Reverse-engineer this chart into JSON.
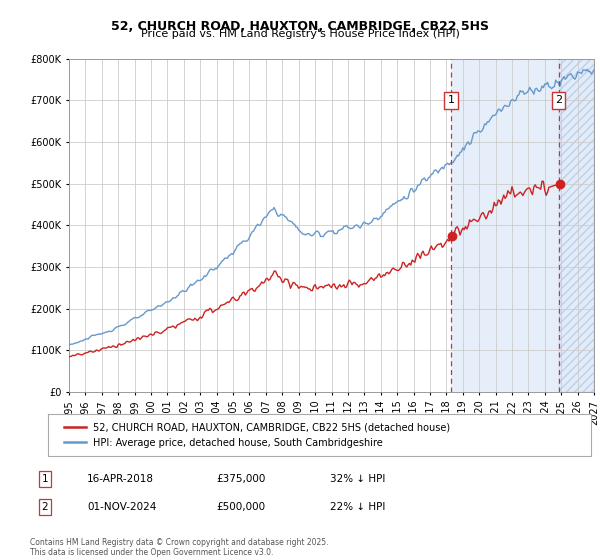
{
  "title1": "52, CHURCH ROAD, HAUXTON, CAMBRIDGE, CB22 5HS",
  "title2": "Price paid vs. HM Land Registry's House Price Index (HPI)",
  "ylim": [
    0,
    800000
  ],
  "xlim_start": 1995.0,
  "xlim_end": 2027.0,
  "hpi_color": "#6699cc",
  "price_color": "#cc2222",
  "vline_color": "#cc3333",
  "marker1_date": 2018.29,
  "marker2_date": 2024.84,
  "annotation1": {
    "date_str": "16-APR-2018",
    "price": "£375,000",
    "pct": "32% ↓ HPI"
  },
  "annotation2": {
    "date_str": "01-NOV-2024",
    "price": "£500,000",
    "pct": "22% ↓ HPI"
  },
  "legend1": "52, CHURCH ROAD, HAUXTON, CAMBRIDGE, CB22 5HS (detached house)",
  "legend2": "HPI: Average price, detached house, South Cambridgeshire",
  "footer": "Contains HM Land Registry data © Crown copyright and database right 2025.\nThis data is licensed under the Open Government Licence v3.0.",
  "hatch_color": "#dce8f5",
  "yticks": [
    0,
    100000,
    200000,
    300000,
    400000,
    500000,
    600000,
    700000,
    800000
  ],
  "ytick_labels": [
    "£0",
    "£100K",
    "£200K",
    "£300K",
    "£400K",
    "£500K",
    "£600K",
    "£700K",
    "£800K"
  ]
}
